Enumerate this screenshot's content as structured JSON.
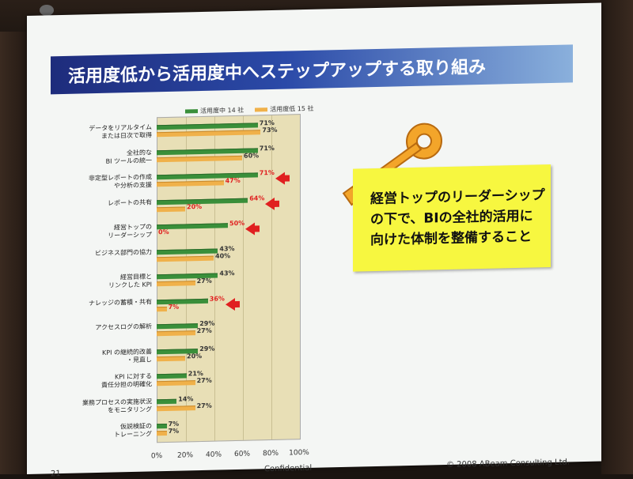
{
  "slide": {
    "title": "活用度低から活用度中へステップアップする取り組み",
    "callout_lines": [
      "経営トップのリーダーシップ",
      "の下で、BIの全社的活用に",
      "向けた体制を整備すること"
    ],
    "footer_page": "21",
    "footer_center": "Confidential",
    "footer_right": "© 2008 ABeam Consulting Ltd."
  },
  "colors": {
    "green": "#3a8f3a",
    "orange": "#f0b14a",
    "highlight": "#e02020",
    "title_bg": "#2b4aa8",
    "callout_bg": "#f7f740"
  },
  "icons": [
    "key-icon",
    "arrow-left-icon"
  ],
  "chart_data": {
    "type": "bar",
    "orientation": "horizontal",
    "legend": [
      "活用度中 14 社",
      "活用度低 15 社"
    ],
    "categories": [
      "データをリアルタイム\nまたは日次で取得",
      "全社的な\nBI ツールの統一",
      "非定型レポートの作成\nや分析の支援",
      "レポートの共有",
      "経営トップの\nリーダーシップ",
      "ビジネス部門の協力",
      "経営目標と\nリンクした KPI",
      "ナレッジの蓄積・共有",
      "アクセスログの解析",
      "KPI の継続的改善\n・見直し",
      "KPI に対する\n責任分担の明確化",
      "業務プロセスの実施状況\nをモニタリング",
      "仮説検証の\nトレーニング"
    ],
    "series": [
      {
        "name": "活用度中 14 社",
        "values": [
          71,
          71,
          71,
          64,
          50,
          43,
          43,
          36,
          29,
          29,
          21,
          14,
          7
        ]
      },
      {
        "name": "活用度低 15 社",
        "values": [
          73,
          60,
          47,
          20,
          0,
          40,
          27,
          7,
          27,
          20,
          27,
          27,
          7
        ]
      }
    ],
    "highlighted": [
      false,
      false,
      true,
      true,
      true,
      false,
      false,
      true,
      false,
      false,
      false,
      false,
      false
    ],
    "xlim": [
      0,
      100
    ],
    "xticks": [
      "0%",
      "20%",
      "40%",
      "60%",
      "80%",
      "100%"
    ],
    "grid": true,
    "legend_position": "top"
  }
}
